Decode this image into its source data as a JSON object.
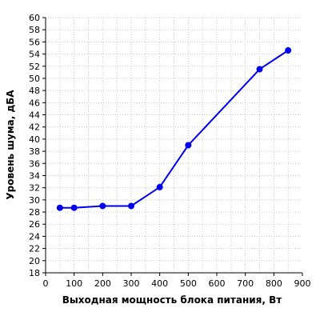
{
  "chart_data": {
    "type": "line",
    "xlabel": "Выходная мощность блока питания, Вт",
    "ylabel": "Уровень шума, дБА",
    "xlim": [
      0,
      900
    ],
    "ylim": [
      18,
      60
    ],
    "x_ticks": [
      0,
      100,
      200,
      300,
      400,
      500,
      600,
      700,
      800,
      900
    ],
    "y_ticks": [
      18,
      20,
      22,
      24,
      26,
      28,
      30,
      32,
      34,
      36,
      38,
      40,
      42,
      44,
      46,
      48,
      50,
      52,
      54,
      56,
      58,
      60
    ],
    "grid": true,
    "series": [
      {
        "color": "#0000ee",
        "x": [
          50,
          100,
          200,
          300,
          400,
          500,
          750,
          850
        ],
        "y": [
          28.7,
          28.7,
          29.0,
          29.0,
          32.1,
          39.0,
          51.5,
          54.6
        ]
      }
    ]
  }
}
